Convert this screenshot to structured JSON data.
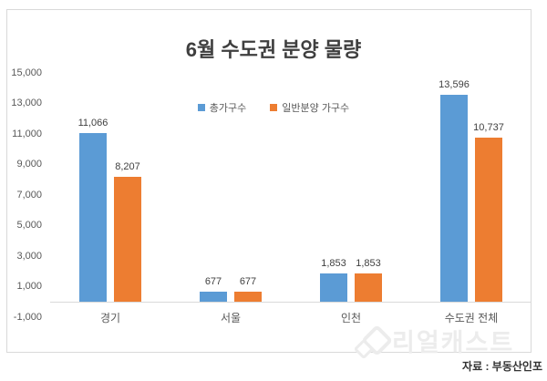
{
  "title": "6월 수도권 분양 물량",
  "source_note": "자료 : 부동산인포",
  "watermark": {
    "text": "리얼캐스트",
    "icon": "overlapping-rounded-squares",
    "color": "#ececec"
  },
  "colors": {
    "series_blue": "#5B9BD5",
    "series_orange": "#ED7D31",
    "chart_border": "#D9D9D9",
    "axis_line": "#D9D9D9",
    "title_text": "#3F3F3F",
    "tick_text": "#595959",
    "value_label_text": "#404040",
    "source_text": "#333333"
  },
  "chart_data": {
    "type": "bar",
    "title": "6월 수도권 분양 물량",
    "categories": [
      "경기",
      "서울",
      "인천",
      "수도권 전체"
    ],
    "category_keys": [
      "gyeonggi",
      "seoul",
      "incheon",
      "sudogwon-total"
    ],
    "series": [
      {
        "name": "총가구수",
        "key": "total-households",
        "color": "#5B9BD5",
        "values": [
          11066,
          677,
          1853,
          13596
        ]
      },
      {
        "name": "일반분양 가구수",
        "key": "general-sale-households",
        "color": "#ED7D31",
        "values": [
          8207,
          677,
          1853,
          10737
        ]
      }
    ],
    "data_labels": [
      [
        "11,066",
        "677",
        "1,853",
        "13,596"
      ],
      [
        "8,207",
        "677",
        "1,853",
        "10,737"
      ]
    ],
    "xlabel": "",
    "ylabel": "",
    "ylim": [
      -1000,
      15000
    ],
    "yticks": [
      15000,
      13000,
      11000,
      9000,
      7000,
      5000,
      3000,
      1000,
      -1000
    ],
    "ytick_labels": [
      "15,000",
      "13,000",
      "11,000",
      "9,000",
      "7,000",
      "5,000",
      "3,000",
      "1,000",
      "-1,000"
    ],
    "grid": false,
    "legend_position": "top-center",
    "bars_baseline_value": 0
  }
}
